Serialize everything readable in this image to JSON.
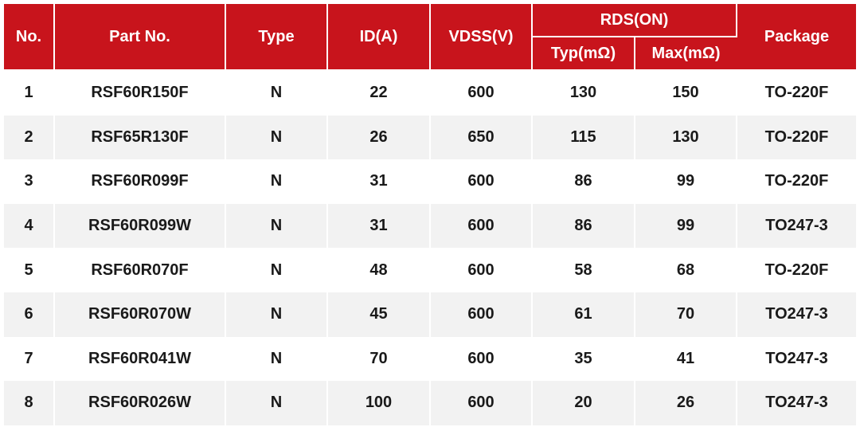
{
  "header": {
    "no": "No.",
    "part_no": "Part No.",
    "type": "Type",
    "id": "ID(A)",
    "vdss": "VDSS(V)",
    "rds_on": "RDS(ON)",
    "typ": "Typ(mΩ)",
    "max": "Max(mΩ)",
    "package": "Package"
  },
  "rows": [
    [
      "1",
      "RSF60R150F",
      "N",
      "22",
      "600",
      "130",
      "150",
      "TO-220F"
    ],
    [
      "2",
      "RSF65R130F",
      "N",
      "26",
      "650",
      "115",
      "130",
      "TO-220F"
    ],
    [
      "3",
      "RSF60R099F",
      "N",
      "31",
      "600",
      "86",
      "99",
      "TO-220F"
    ],
    [
      "4",
      "RSF60R099W",
      "N",
      "31",
      "600",
      "86",
      "99",
      "TO247-3"
    ],
    [
      "5",
      "RSF60R070F",
      "N",
      "48",
      "600",
      "58",
      "68",
      "TO-220F"
    ],
    [
      "6",
      "RSF60R070W",
      "N",
      "45",
      "600",
      "61",
      "70",
      "TO247-3"
    ],
    [
      "7",
      "RSF60R041W",
      "N",
      "70",
      "600",
      "35",
      "41",
      "TO247-3"
    ],
    [
      "8",
      "RSF60R026W",
      "N",
      "100",
      "600",
      "20",
      "26",
      "TO247-3"
    ]
  ]
}
